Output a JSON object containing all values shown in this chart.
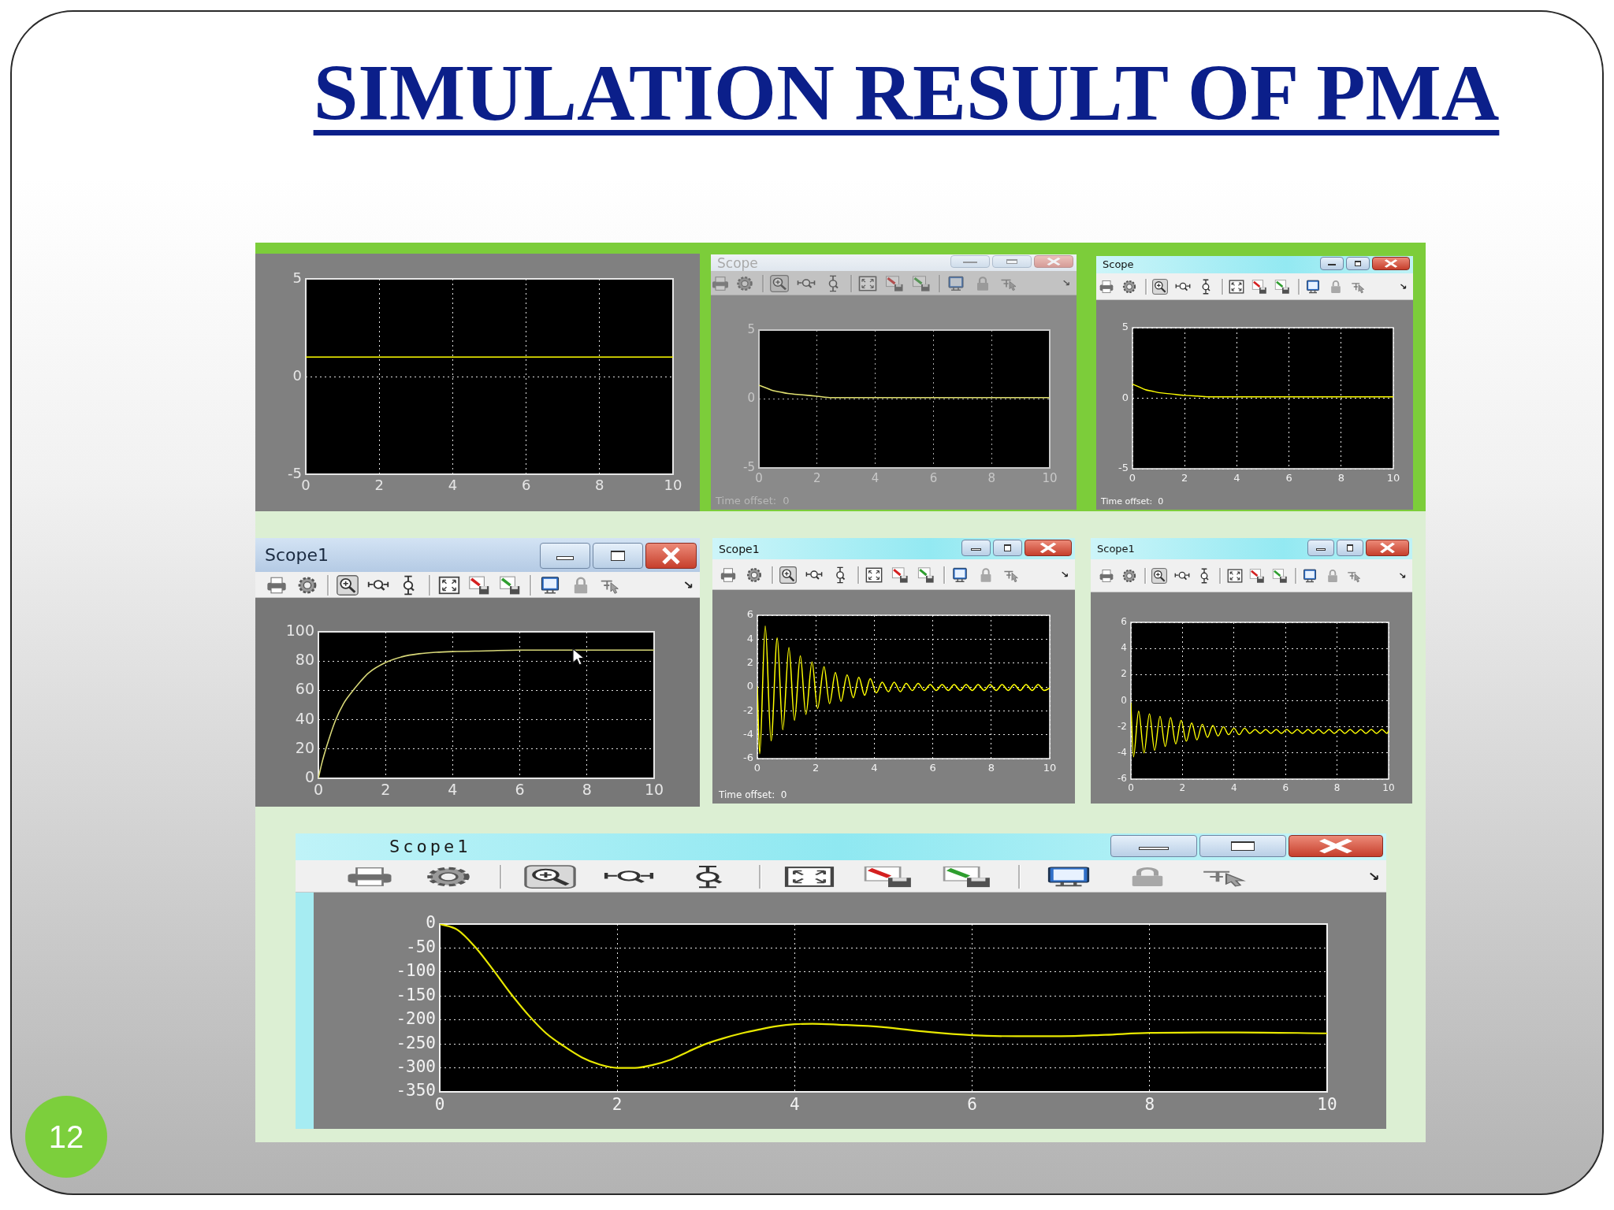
{
  "chart_data": [
    {
      "type": "other",
      "title": "SIMULATION RESULT OF PMA",
      "annotations": [
        "12"
      ]
    },
    {
      "type": "line",
      "x": [
        0,
        10
      ],
      "values": [
        1,
        1
      ],
      "color": "#ffff00",
      "xlim": [
        0,
        10
      ],
      "xticks": [
        0,
        2,
        4,
        6,
        8,
        10
      ],
      "ylim": [
        -5,
        5
      ],
      "yticks": [
        -5,
        0,
        5
      ],
      "grid": true
    },
    {
      "type": "line",
      "title": "Scope",
      "annotations": [
        "Time offset:  0"
      ],
      "x": [
        0,
        0.25,
        0.5,
        0.75,
        1,
        1.5,
        2,
        2.5,
        3,
        4,
        6,
        10
      ],
      "values": [
        1.0,
        0.8,
        0.6,
        0.5,
        0.4,
        0.3,
        0.2,
        0.1,
        0.1,
        0.1,
        0.1,
        0.1
      ],
      "color": "#e0e070",
      "xlim": [
        0,
        10
      ],
      "xticks": [
        0,
        2,
        4,
        6,
        8,
        10
      ],
      "ylim": [
        -5,
        5
      ],
      "yticks": [
        -5,
        0,
        5
      ],
      "grid": true
    },
    {
      "type": "line",
      "title": "Scope",
      "annotations": [
        "Time offset:  0"
      ],
      "x": [
        0,
        0.25,
        0.5,
        0.75,
        1,
        1.5,
        2,
        2.5,
        3,
        4,
        6,
        10
      ],
      "values": [
        1.0,
        0.8,
        0.6,
        0.5,
        0.4,
        0.3,
        0.2,
        0.15,
        0.1,
        0.1,
        0.1,
        0.1
      ],
      "color": "#ffff00",
      "xlim": [
        0,
        10
      ],
      "xticks": [
        0,
        2,
        4,
        6,
        8,
        10
      ],
      "ylim": [
        -5,
        5
      ],
      "yticks": [
        -5,
        0,
        5
      ],
      "grid": true
    },
    {
      "type": "line",
      "title": "Scope1",
      "x": [
        0,
        0.1,
        0.25,
        0.5,
        0.75,
        1,
        1.25,
        1.5,
        2,
        2.5,
        3,
        3.5,
        4,
        5,
        6,
        8,
        10
      ],
      "values": [
        0,
        10,
        22,
        39,
        51,
        59,
        66,
        72,
        79,
        83,
        85,
        86,
        86.5,
        87,
        87.5,
        87.5,
        87.5
      ],
      "color": "#d8d878",
      "xlim": [
        0,
        10
      ],
      "xticks": [
        0,
        2,
        4,
        6,
        8,
        10
      ],
      "ylim": [
        0,
        100
      ],
      "yticks": [
        0,
        20,
        40,
        60,
        80,
        100
      ],
      "grid": true
    },
    {
      "type": "line",
      "title": "Scope1",
      "annotations": [
        "Time offset:  0"
      ],
      "x": [
        0,
        0.08,
        0.27,
        0.47,
        0.68,
        0.87,
        1.08,
        1.27,
        1.47,
        1.66,
        1.87,
        2.06,
        2.28,
        2.47,
        2.67,
        2.86,
        3.07,
        3.28,
        3.47,
        3.67,
        3.86,
        4.07,
        4.27,
        4.48,
        4.68,
        4.89,
        5.09,
        5.3,
        5.5,
        5.71,
        5.91,
        6.12,
        6.32,
        6.53,
        6.73,
        6.94,
        7.14,
        7.35,
        7.55,
        7.76,
        7.96,
        8.17,
        8.37,
        8.58,
        8.78,
        8.99,
        9.19,
        9.4,
        9.6,
        9.81,
        10
      ],
      "values": [
        0,
        -5.6,
        5.1,
        -4.5,
        4.1,
        -3.6,
        3.3,
        -2.8,
        2.6,
        -2.3,
        2.1,
        -1.8,
        1.7,
        -1.4,
        1.2,
        -1.2,
        1.0,
        -0.9,
        0.8,
        -0.7,
        0.7,
        -0.5,
        0.4,
        -0.4,
        0.4,
        -0.4,
        0.3,
        -0.3,
        0.3,
        -0.3,
        0.2,
        -0.3,
        0.2,
        -0.3,
        0.2,
        -0.3,
        0.2,
        -0.3,
        0.2,
        -0.3,
        0.2,
        -0.3,
        0.2,
        -0.3,
        0.2,
        -0.3,
        0.2,
        -0.3,
        0.2,
        -0.3,
        -0.1
      ],
      "color": "#ffff00",
      "xlim": [
        0,
        10
      ],
      "xticks": [
        0,
        2,
        4,
        6,
        8,
        10
      ],
      "ylim": [
        -6,
        6
      ],
      "yticks": [
        -6,
        -4,
        -2,
        0,
        2,
        4,
        6
      ],
      "grid": true
    },
    {
      "type": "line",
      "title": "Scope1",
      "x": [
        0,
        0.1,
        0.3,
        0.51,
        0.72,
        0.92,
        1.13,
        1.33,
        1.54,
        1.74,
        1.95,
        2.15,
        2.36,
        2.56,
        2.77,
        2.97,
        3.18,
        3.38,
        3.59,
        3.79,
        4.0,
        4.2,
        4.41,
        4.61,
        4.82,
        5.02,
        5.23,
        5.43,
        5.64,
        5.84,
        6.05,
        6.25,
        6.46,
        6.66,
        6.87,
        7.07,
        7.28,
        7.48,
        7.69,
        7.89,
        8.1,
        8.3,
        8.51,
        8.71,
        8.92,
        9.12,
        9.33,
        9.53,
        9.74,
        9.94,
        10
      ],
      "values": [
        -0.2,
        -4.3,
        -0.8,
        -4.0,
        -1.0,
        -3.8,
        -1.2,
        -3.5,
        -1.3,
        -3.3,
        -1.5,
        -3.1,
        -1.7,
        -3.0,
        -1.8,
        -2.8,
        -1.9,
        -2.7,
        -2.0,
        -2.6,
        -2.1,
        -2.6,
        -2.1,
        -2.5,
        -2.2,
        -2.5,
        -2.2,
        -2.5,
        -2.2,
        -2.5,
        -2.2,
        -2.5,
        -2.2,
        -2.5,
        -2.2,
        -2.5,
        -2.2,
        -2.5,
        -2.2,
        -2.5,
        -2.2,
        -2.5,
        -2.2,
        -2.5,
        -2.2,
        -2.5,
        -2.2,
        -2.5,
        -2.2,
        -2.5,
        -2.3
      ],
      "color": "#ffff00",
      "xlim": [
        0,
        10
      ],
      "xticks": [
        0,
        2,
        4,
        6,
        8,
        10
      ],
      "ylim": [
        -6,
        6
      ],
      "yticks": [
        -6,
        -4,
        -2,
        0,
        2,
        4,
        6
      ],
      "grid": true
    },
    {
      "type": "line",
      "title": "Scope1",
      "x": [
        0,
        0.2,
        0.4,
        0.6,
        0.8,
        1.0,
        1.2,
        1.4,
        1.6,
        1.8,
        2.0,
        2.2,
        2.4,
        2.6,
        2.8,
        3.0,
        3.2,
        3.4,
        3.6,
        3.8,
        4.0,
        4.2,
        4.5,
        5.0,
        5.5,
        6.0,
        6.5,
        7.0,
        7.5,
        8.0,
        9.0,
        10
      ],
      "values": [
        0,
        -12,
        -48,
        -95,
        -145,
        -190,
        -228,
        -255,
        -278,
        -293,
        -300,
        -300,
        -294,
        -283,
        -266,
        -250,
        -238,
        -228,
        -220,
        -213,
        -209,
        -208,
        -210,
        -215,
        -225,
        -232,
        -234,
        -234,
        -231,
        -227,
        -226,
        -228
      ],
      "color": "#e8e800",
      "xlim": [
        0,
        10
      ],
      "xticks": [
        0,
        2,
        4,
        6,
        8,
        10
      ],
      "ylim": [
        -350,
        0
      ],
      "yticks": [
        -350,
        -300,
        -250,
        -200,
        -150,
        -100,
        -50,
        0
      ],
      "grid": true
    }
  ]
}
